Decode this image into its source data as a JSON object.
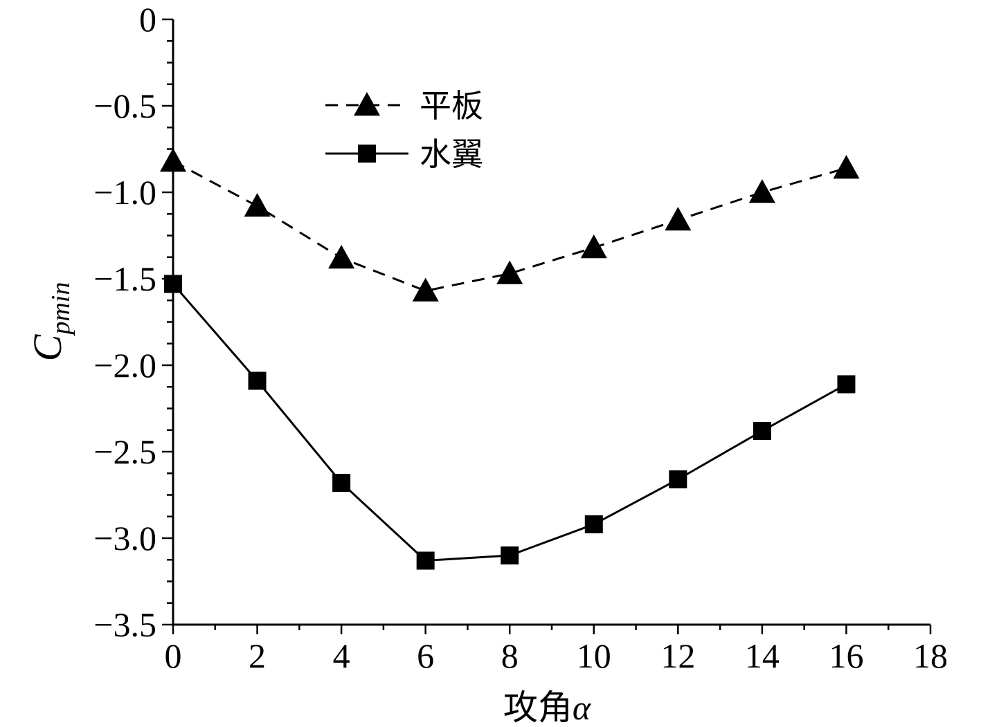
{
  "chart_data": {
    "type": "line",
    "title": "",
    "xlabel": "攻角",
    "xlabel_symbol": "α",
    "ylabel": "C",
    "ylabel_sub": "pmin",
    "xlim": [
      0,
      18
    ],
    "ylim": [
      -3.5,
      0
    ],
    "x_ticks": [
      "0",
      "2",
      "4",
      "6",
      "8",
      "10",
      "12",
      "14",
      "16",
      "18"
    ],
    "y_ticks": [
      "0",
      "−0.5",
      "−1.0",
      "−1.5",
      "−2.0",
      "−2.5",
      "−3.0",
      "−3.5"
    ],
    "grid": false,
    "legend_position": "top-center",
    "x": [
      0,
      2,
      4,
      6,
      8,
      10,
      12,
      14,
      16
    ],
    "series": [
      {
        "name": "平板",
        "marker": "triangle",
        "line_style": "dashed",
        "color": "#000000",
        "values": [
          -0.82,
          -1.08,
          -1.38,
          -1.57,
          -1.47,
          -1.32,
          -1.16,
          -1.0,
          -0.86
        ]
      },
      {
        "name": "水翼",
        "marker": "square",
        "line_style": "solid",
        "color": "#000000",
        "values": [
          -1.53,
          -2.09,
          -2.68,
          -3.13,
          -3.1,
          -2.92,
          -2.66,
          -2.38,
          -2.11
        ]
      }
    ]
  }
}
